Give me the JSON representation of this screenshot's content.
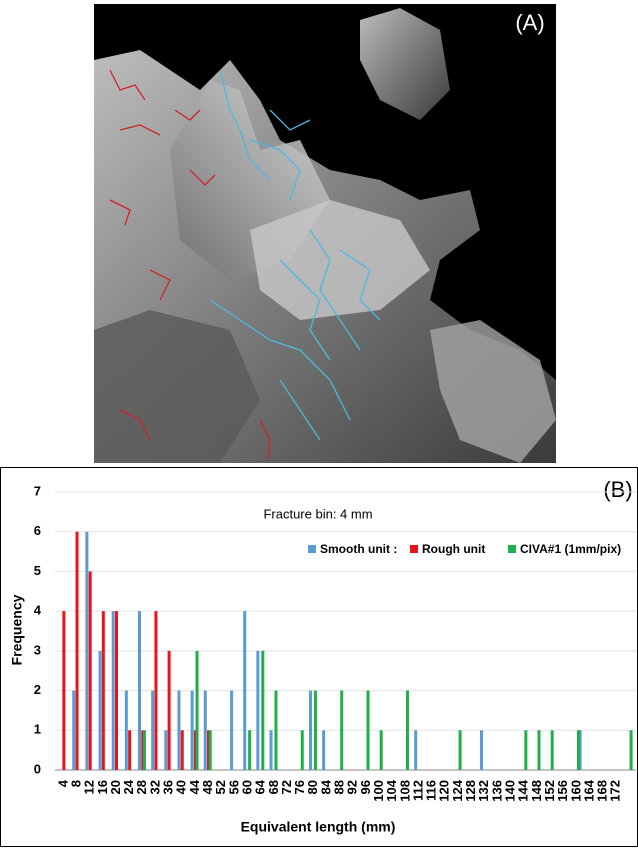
{
  "panel_a": {
    "label": "(A)"
  },
  "chart_data": {
    "type": "bar",
    "panel_label": "(B)",
    "annotation": "Fracture bin: 4 mm",
    "xlabel": "Equivalent length (mm)",
    "ylabel": "Frequency",
    "xlim": [
      1.3,
      178
    ],
    "ylim": [
      0,
      7
    ],
    "xticks": [
      4,
      8,
      12,
      16,
      20,
      24,
      28,
      32,
      36,
      40,
      44,
      48,
      52,
      56,
      60,
      64,
      68,
      72,
      76,
      80,
      84,
      88,
      92,
      96,
      100,
      104,
      108,
      112,
      116,
      120,
      124,
      128,
      132,
      136,
      140,
      144,
      148,
      152,
      156,
      160,
      164,
      168,
      172
    ],
    "yticks": [
      0,
      1,
      2,
      3,
      4,
      5,
      6,
      7
    ],
    "grid": true,
    "series": [
      {
        "name": "Smooth unit :",
        "color": "#5b9bd5",
        "x": [
          7,
          11,
          15,
          19,
          23,
          27,
          31,
          35,
          39,
          43,
          47,
          55,
          59,
          63,
          67,
          79,
          83,
          111,
          131,
          161
        ],
        "values": [
          2,
          6,
          3,
          4,
          2,
          4,
          2,
          1,
          2,
          2,
          2,
          2,
          4,
          3,
          1,
          2,
          1,
          1,
          1,
          1
        ]
      },
      {
        "name": "Rough unit",
        "color": "#e8141a",
        "x": [
          4,
          8,
          12,
          16,
          20,
          24,
          28,
          32,
          36,
          40,
          44,
          48
        ],
        "values": [
          4,
          6,
          5,
          4,
          4,
          1,
          1,
          4,
          3,
          1,
          1,
          1
        ]
      },
      {
        "name": "CIVA#1 (1mm/pix)",
        "color": "#1fae4a",
        "x": [
          28.5,
          44.5,
          48.5,
          60.5,
          64.5,
          68.5,
          76.5,
          80.5,
          88.5,
          96.5,
          100.5,
          108.5,
          124.5,
          144.5,
          148.5,
          152.5,
          160.5,
          176.5
        ],
        "values": [
          1,
          3,
          1,
          1,
          3,
          2,
          1,
          2,
          2,
          2,
          1,
          2,
          1,
          1,
          1,
          1,
          1,
          1
        ]
      }
    ]
  }
}
